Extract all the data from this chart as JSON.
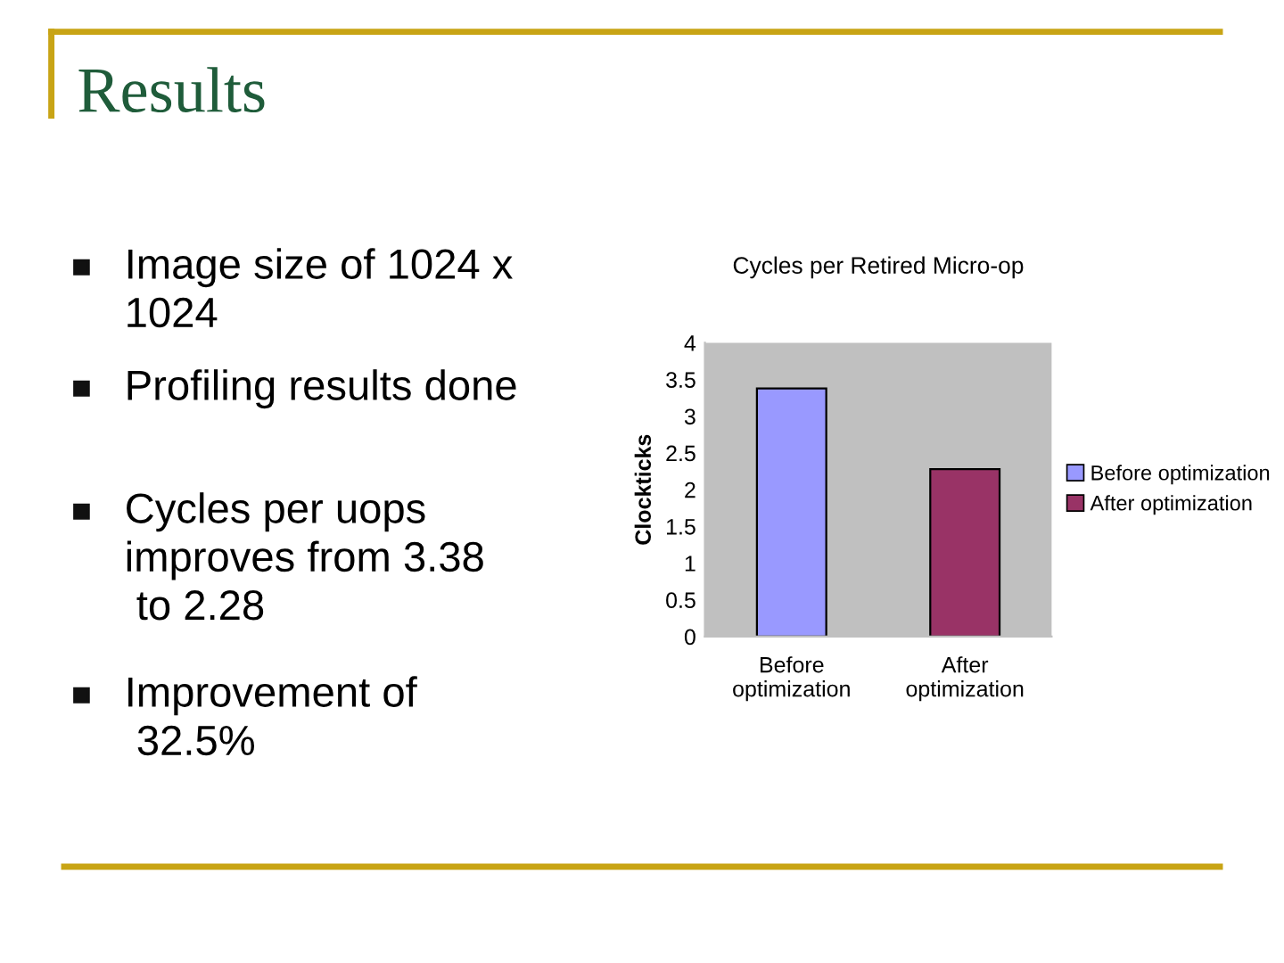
{
  "chart_data": {
    "type": "bar",
    "title": "Cycles per Retired Micro-op",
    "ylabel": "Clockticks",
    "categories": [
      "Before\noptimization",
      "After\noptimization"
    ],
    "series": [
      {
        "name": "Before optimization",
        "color": "#9999ff",
        "values": [
          3.38,
          null
        ]
      },
      {
        "name": "After optimization",
        "color": "#993366",
        "values": [
          null,
          2.28
        ]
      }
    ],
    "ylim": [
      0,
      4
    ],
    "yticks": [
      0,
      0.5,
      1,
      1.5,
      2,
      2.5,
      3,
      3.5,
      4
    ],
    "grid": false,
    "legend": "right",
    "annotations": [
      "Results",
      "Image size of 1024 x\n1024",
      "Profiling results done",
      "Cycles per uops\nimproves from 3.38\n to 2.28",
      "Improvement of\n 32.5%"
    ]
  }
}
